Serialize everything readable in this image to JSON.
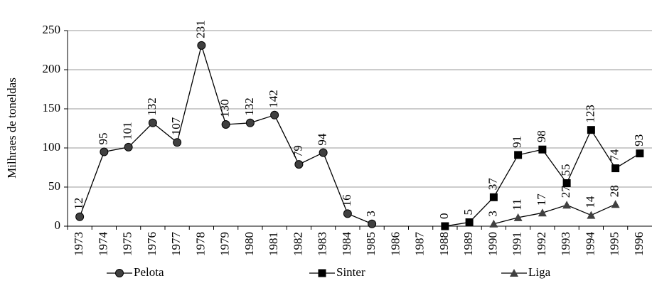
{
  "chart_data": {
    "type": "line",
    "y_label": "Milhraes de toneldas",
    "categories": [
      "1973",
      "1974",
      "1975",
      "1976",
      "1977",
      "1978",
      "1979",
      "1980",
      "1981",
      "1982",
      "1983",
      "1984",
      "1985",
      "1986",
      "1987",
      "1988",
      "1989",
      "1990",
      "1991",
      "1992",
      "1993",
      "1994",
      "1995",
      "1996"
    ],
    "series": [
      {
        "name": "Pelota",
        "color": "#404040",
        "marker": "circle",
        "values": [
          12,
          95,
          101,
          132,
          107,
          231,
          130,
          132,
          142,
          79,
          94,
          16,
          3,
          null,
          null,
          null,
          null,
          null,
          null,
          null,
          null,
          null,
          null,
          null
        ]
      },
      {
        "name": "Sinter",
        "color": "#000000",
        "marker": "square",
        "values": [
          null,
          null,
          null,
          null,
          null,
          null,
          null,
          null,
          null,
          null,
          null,
          null,
          null,
          null,
          null,
          0,
          5,
          37,
          91,
          98,
          55,
          123,
          74,
          93
        ]
      },
      {
        "name": "Liga",
        "color": "#404040",
        "marker": "triangle",
        "values": [
          null,
          null,
          null,
          null,
          null,
          null,
          null,
          null,
          null,
          null,
          null,
          null,
          null,
          null,
          null,
          null,
          null,
          3,
          11,
          17,
          27,
          14,
          28,
          null
        ]
      }
    ],
    "ylim": [
      0,
      250
    ],
    "yticks": [
      0,
      50,
      100,
      150,
      200,
      250
    ],
    "grid": true
  }
}
